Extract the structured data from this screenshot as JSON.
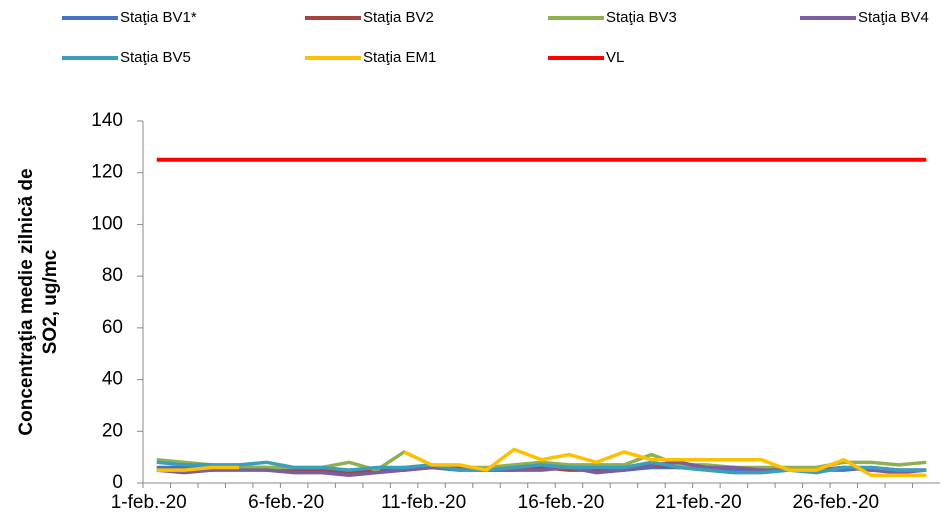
{
  "chart_data": {
    "type": "line",
    "y_label": [
      "Concentraţia medie zilnică de",
      "SO2, ug/mc"
    ],
    "categories": [
      "1-feb.-20",
      null,
      null,
      null,
      null,
      "6-feb.-20",
      null,
      null,
      null,
      null,
      "11-feb.-20",
      null,
      null,
      null,
      null,
      "16-feb.-20",
      null,
      null,
      null,
      null,
      "21-feb.-20",
      null,
      null,
      null,
      null,
      "26-feb.-20",
      null,
      null,
      null
    ],
    "series": [
      {
        "name": "Staţia BV1*",
        "color": "#4472c4",
        "values": [
          6,
          6,
          6,
          6,
          6,
          5,
          5,
          5,
          5,
          6,
          6,
          5,
          5,
          6,
          6,
          6,
          5,
          5,
          6,
          6,
          6,
          5,
          5,
          5,
          5,
          5,
          6,
          5,
          5
        ]
      },
      {
        "name": "Staţia BV2",
        "color": "#a5443e",
        "values": [
          5,
          5,
          5,
          6,
          5,
          5,
          5,
          4,
          5,
          5,
          6,
          6,
          5,
          5,
          6,
          5,
          5,
          5,
          7,
          6,
          6,
          6,
          5,
          5,
          5,
          6,
          5,
          5,
          5
        ]
      },
      {
        "name": "Staţia BV3",
        "color": "#8eb04f",
        "values": [
          9,
          8,
          7,
          6,
          6,
          6,
          6,
          8,
          5,
          12,
          7,
          6,
          6,
          7,
          8,
          7,
          7,
          7,
          11,
          7,
          7,
          6,
          6,
          6,
          6,
          8,
          8,
          7,
          8
        ]
      },
      {
        "name": "Staţia BV4",
        "color": "#7b5ea0",
        "values": [
          5,
          4,
          5,
          5,
          5,
          4,
          4,
          3,
          4,
          5,
          6,
          6,
          5,
          5,
          5,
          6,
          4,
          5,
          7,
          8,
          6,
          6,
          5,
          5,
          5,
          6,
          5,
          4,
          5
        ]
      },
      {
        "name": "Staţia BV5",
        "color": "#3a9fbd",
        "values": [
          8,
          7,
          7,
          7,
          8,
          6,
          6,
          5,
          6,
          6,
          7,
          5,
          5,
          6,
          7,
          6,
          6,
          6,
          8,
          6,
          5,
          4,
          4,
          5,
          4,
          6,
          6,
          5,
          5
        ]
      },
      {
        "name": "Staţia EM1",
        "color": "#ffc000",
        "values": [
          5,
          5,
          6,
          6,
          null,
          null,
          null,
          null,
          null,
          12,
          7,
          7,
          5,
          13,
          9,
          11,
          8,
          12,
          9,
          9,
          9,
          9,
          9,
          5,
          5,
          9,
          3,
          3,
          3
        ]
      },
      {
        "name": "VL",
        "color": "#ff0000",
        "values": [
          125,
          125,
          125,
          125,
          125,
          125,
          125,
          125,
          125,
          125,
          125,
          125,
          125,
          125,
          125,
          125,
          125,
          125,
          125,
          125,
          125,
          125,
          125,
          125,
          125,
          125,
          125,
          125,
          125
        ]
      }
    ],
    "ylim": [
      0,
      140
    ],
    "yticks": [
      0,
      20,
      40,
      60,
      80,
      100,
      120,
      140
    ]
  }
}
